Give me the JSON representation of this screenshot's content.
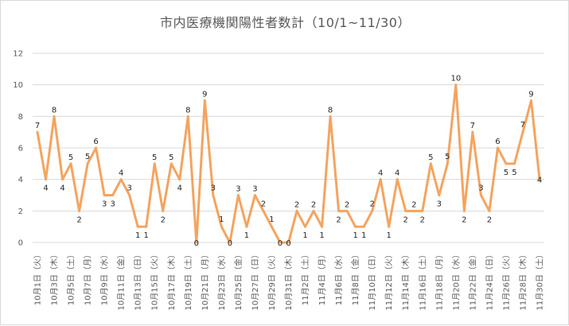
{
  "chart_data": {
    "type": "line",
    "title": "市内医療機関陽性者数計（10/1~11/30）",
    "ylim": [
      0,
      12
    ],
    "yticks": [
      0,
      2,
      4,
      6,
      8,
      10,
      12
    ],
    "grid": true,
    "line_color": "#F4A460",
    "x": [
      "10月1日",
      "10月2日",
      "10月3日",
      "10月4日",
      "10月5日",
      "10月6日",
      "10月7日",
      "10月8日",
      "10月9日",
      "10月10日",
      "10月11日",
      "10月12日",
      "10月13日",
      "10月14日",
      "10月15日",
      "10月16日",
      "10月17日",
      "10月18日",
      "10月19日",
      "10月20日",
      "10月21日",
      "10月22日",
      "10月23日",
      "10月24日",
      "10月25日",
      "10月26日",
      "10月27日",
      "10月28日",
      "10月29日",
      "10月30日",
      "10月31日",
      "11月1日",
      "11月2日",
      "11月3日",
      "11月4日",
      "11月5日",
      "11月6日",
      "11月7日",
      "11月8日",
      "11月9日",
      "11月10日",
      "11月11日",
      "11月12日",
      "11月13日",
      "11月14日",
      "11月15日",
      "11月16日",
      "11月17日",
      "11月18日",
      "11月19日",
      "11月20日",
      "11月21日",
      "11月22日",
      "11月23日",
      "11月24日",
      "11月25日",
      "11月26日",
      "11月27日",
      "11月28日",
      "11月29日",
      "11月30日"
    ],
    "tick_labels": [
      "10月1日（火）",
      "10月3日（木）",
      "10月5日（土）",
      "10月7日（月）",
      "10月9日（水）",
      "10月11日（金）",
      "10月13日（日）",
      "10月15日（火）",
      "10月17日（木）",
      "10月19日（土）",
      "10月21日（月）",
      "10月23日（水）",
      "10月25日（金）",
      "10月27日（日）",
      "10月29日（火）",
      "10月31日（木）",
      "11月2日（土）",
      "11月4日（月）",
      "11月6日（水）",
      "11月8日（金）",
      "11月10日（日）",
      "11月12日（火）",
      "11月14日（木）",
      "11月16日（土）",
      "11月18日（月）",
      "11月20日（水）",
      "11月22日（金）",
      "11月24日（日）",
      "11月26日（火）",
      "11月28日（木）",
      "11月30日（土）"
    ],
    "tick_label_every": 2,
    "series": [
      {
        "values": [
          7,
          4,
          8,
          4,
          5,
          2,
          5,
          6,
          3,
          3,
          4,
          3,
          1,
          1,
          5,
          2,
          5,
          4,
          8,
          0,
          9,
          3,
          1,
          0,
          3,
          1,
          3,
          2,
          1,
          0,
          0,
          2,
          1,
          2,
          1,
          8,
          2,
          2,
          1,
          1,
          2,
          4,
          1,
          4,
          2,
          2,
          2,
          5,
          3,
          5,
          10,
          2,
          7,
          3,
          2,
          6,
          5,
          5,
          7,
          9,
          4
        ]
      }
    ]
  }
}
